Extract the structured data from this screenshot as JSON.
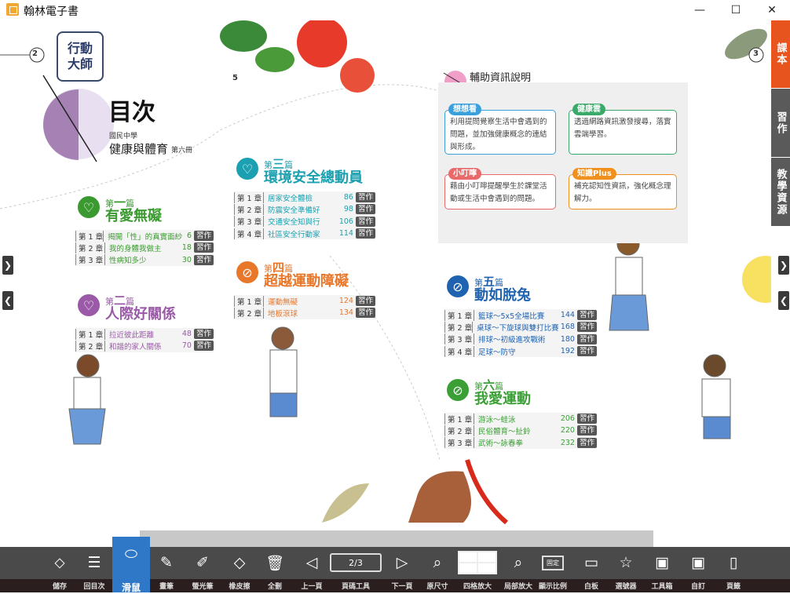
{
  "window": {
    "title": "翰林電子書",
    "minimize": "—",
    "maximize": "☐",
    "close": "✕"
  },
  "side_tabs": [
    {
      "label": "課本",
      "color": "#e8541e",
      "active": true
    },
    {
      "label": "習作",
      "color": "#5a5a5a"
    },
    {
      "label": "教學資源",
      "color": "#5a5a5a"
    }
  ],
  "page_left": {
    "page_number": "2",
    "badge": "行動大師",
    "title": "目次",
    "school": "國民中學",
    "subject": "健康與體育",
    "volume": "第六冊"
  },
  "page_right": {
    "page_number": "3",
    "sub_page": "5"
  },
  "homework_label": "習作",
  "units": [
    {
      "num_prefix": "第",
      "num": "一",
      "num_suffix": "篇",
      "title": "有愛無礙",
      "color": "#3a9a2f",
      "icon": "heart-cross-icon",
      "chapters": [
        [
          "第 1 章",
          "揭開「性」的真實面紗",
          "6"
        ],
        [
          "第 2 章",
          "我的身體我做主",
          "18"
        ],
        [
          "第 3 章",
          "性病知多少",
          "30"
        ]
      ]
    },
    {
      "num_prefix": "第",
      "num": "二",
      "num_suffix": "篇",
      "title": "人際好關係",
      "color": "#9a5aa8",
      "icon": "heart-cross-icon",
      "chapters": [
        [
          "第 1 章",
          "拉近彼此距離",
          "48"
        ],
        [
          "第 2 章",
          "和諧的家人關係",
          "70"
        ]
      ]
    },
    {
      "num_prefix": "第",
      "num": "三",
      "num_suffix": "篇",
      "title": "環境安全總動員",
      "color": "#1aa0b0",
      "icon": "heart-cross-icon",
      "chapters": [
        [
          "第 1 章",
          "居家安全體檢",
          "86"
        ],
        [
          "第 2 章",
          "防震安全準備好",
          "98"
        ],
        [
          "第 3 章",
          "交通安全知與行",
          "106"
        ],
        [
          "第 4 章",
          "社區安全行動家",
          "114"
        ]
      ]
    },
    {
      "num_prefix": "第",
      "num": "四",
      "num_suffix": "篇",
      "title": "超越運動障礙",
      "color": "#e8772a",
      "icon": "sports-ball-icon",
      "chapters": [
        [
          "第 1 章",
          "運動無礙",
          "124"
        ],
        [
          "第 2 章",
          "地板滾球",
          "134"
        ]
      ]
    },
    {
      "num_prefix": "第",
      "num": "五",
      "num_suffix": "篇",
      "title": "動如脫兔",
      "color": "#1f63b0",
      "icon": "sports-ball-icon",
      "chapters": [
        [
          "第 1 章",
          "籃球～5x5全場比賽",
          "144"
        ],
        [
          "第 2 章",
          "桌球～下旋球與雙打比賽",
          "168"
        ],
        [
          "第 3 章",
          "排球～初級進攻戰術",
          "180"
        ],
        [
          "第 4 章",
          "足球～防守",
          "192"
        ]
      ]
    },
    {
      "num_prefix": "第",
      "num": "六",
      "num_suffix": "篇",
      "title": "我愛運動",
      "color": "#3aa035",
      "icon": "sports-ball-icon",
      "chapters": [
        [
          "第 1 章",
          "游泳～蛙泳",
          "206"
        ],
        [
          "第 2 章",
          "民俗體育～扯鈴",
          "220"
        ],
        [
          "第 3 章",
          "武術～詠春拳",
          "232"
        ]
      ]
    }
  ],
  "info": {
    "title": "輔助資訊說明",
    "boxes": [
      {
        "badge": "想想看",
        "color": "#3aa0dc",
        "text": "利用提問覺察生活中會遇到的問題，並加強健康概念的連結與形成。"
      },
      {
        "badge": "健康雲",
        "color": "#3aaa6a",
        "text": "透過網路資訊激發搜尋，落實雲端學習。"
      },
      {
        "badge": "小叮嚀",
        "color": "#e86a6a",
        "text": "藉由小叮嚀提醒學生於課堂活動或生活中會遇到的問題。"
      },
      {
        "badge": "知識Plus",
        "color": "#f0901e",
        "text": "補充認知性資訊，強化概念理解力。"
      }
    ]
  },
  "toolbar": {
    "page_indicator": "2/3",
    "active_tool": "滑鼠",
    "tools": [
      {
        "label": "儲存",
        "icon": "save-icon",
        "glyph": "⬦"
      },
      {
        "label": "回目次",
        "icon": "toc-icon",
        "glyph": "☰"
      },
      {
        "label": "滑鼠",
        "icon": "mouse-icon",
        "glyph": "⬭"
      },
      {
        "label": "畫筆",
        "icon": "pen-icon",
        "glyph": "✎"
      },
      {
        "label": "螢光筆",
        "icon": "highlighter-icon",
        "glyph": "✐"
      },
      {
        "label": "橡皮擦",
        "icon": "eraser-icon",
        "glyph": "◇"
      },
      {
        "label": "全刪",
        "icon": "trash-icon",
        "glyph": "🗑"
      },
      {
        "label": "上一頁",
        "icon": "prev-page-icon",
        "glyph": "◁"
      },
      {
        "label": "頁碼工具",
        "icon": "page-number-icon",
        "glyph": ""
      },
      {
        "label": "下一頁",
        "icon": "next-page-icon",
        "glyph": "▷"
      },
      {
        "label": "原尺寸",
        "icon": "zoom-reset-icon",
        "glyph": "⌕"
      },
      {
        "label": "四格放大",
        "icon": "four-grid-icon",
        "glyph": ""
      },
      {
        "label": "局部放大",
        "icon": "zoom-area-icon",
        "glyph": "⌕"
      },
      {
        "label": "顯示比例",
        "icon": "display-ratio-icon",
        "glyph": "▭",
        "sub": "固定"
      },
      {
        "label": "白板",
        "icon": "whiteboard-icon",
        "glyph": "▭"
      },
      {
        "label": "選號器",
        "icon": "star-picker-icon",
        "glyph": "☆"
      },
      {
        "label": "工具箱",
        "icon": "toolbox-icon",
        "glyph": "▣"
      },
      {
        "label": "自訂",
        "icon": "custom-icon",
        "glyph": "▣"
      },
      {
        "label": "頁籤",
        "icon": "bookmark-icon",
        "glyph": "▯"
      }
    ]
  }
}
